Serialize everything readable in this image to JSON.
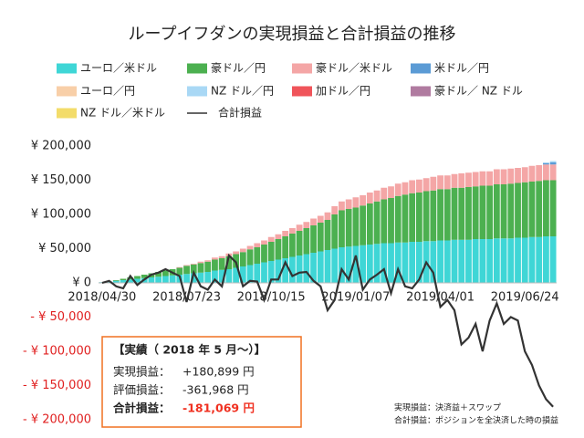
{
  "chart_data": {
    "type": "bar",
    "stacked": true,
    "title": "ループイフダンの実現損益と合計損益の推移",
    "categories": [
      "2018/04/30",
      null,
      null,
      null,
      null,
      null,
      null,
      null,
      null,
      null,
      null,
      null,
      "2018/07/23",
      null,
      null,
      null,
      null,
      null,
      null,
      null,
      null,
      null,
      null,
      null,
      "2018/10/15",
      null,
      null,
      null,
      null,
      null,
      null,
      null,
      null,
      null,
      null,
      null,
      "2019/01/07",
      null,
      null,
      null,
      null,
      null,
      null,
      null,
      null,
      null,
      null,
      null,
      "2019/04/01",
      null,
      null,
      null,
      null,
      null,
      null,
      null,
      null,
      null,
      null,
      null,
      "2019/06/24",
      null,
      null,
      null,
      null
    ],
    "series": [
      {
        "name": "ユーロ／米ドル",
        "color": "#3fd6d6",
        "values": [
          1000,
          2000,
          3000,
          4000,
          5000,
          6000,
          7000,
          8000,
          9000,
          10000,
          11000,
          12000,
          13000,
          14000,
          15000,
          16000,
          18000,
          19000,
          20000,
          22000,
          24000,
          26000,
          28000,
          30000,
          32000,
          34000,
          36000,
          38000,
          40000,
          42000,
          44000,
          46000,
          48000,
          50000,
          52000,
          53000,
          54000,
          55000,
          56000,
          57000,
          58000,
          58000,
          59000,
          59000,
          60000,
          60000,
          61000,
          61000,
          62000,
          62000,
          63000,
          63000,
          63000,
          64000,
          64000,
          64000,
          65000,
          65000,
          65000,
          66000,
          66000,
          67000,
          67000,
          68000,
          68000
        ]
      },
      {
        "name": "豪ドル／円",
        "color": "#4cb050",
        "values": [
          0,
          0,
          1000,
          2000,
          3000,
          4000,
          5000,
          6000,
          7000,
          8000,
          9000,
          10000,
          12000,
          13000,
          14000,
          15000,
          16000,
          17000,
          19000,
          20000,
          21000,
          23000,
          24000,
          26000,
          28000,
          30000,
          32000,
          34000,
          36000,
          38000,
          40000,
          42000,
          44000,
          50000,
          54000,
          55000,
          56000,
          58000,
          60000,
          62000,
          64000,
          66000,
          68000,
          70000,
          71000,
          72000,
          73000,
          74000,
          75000,
          75000,
          76000,
          76000,
          77000,
          77000,
          78000,
          78000,
          79000,
          79000,
          80000,
          80000,
          81000,
          81000,
          82000,
          82000,
          82000
        ]
      },
      {
        "name": "豪ドル／米ドル",
        "color": "#f4a6a6",
        "values": [
          0,
          0,
          0,
          0,
          0,
          0,
          0,
          0,
          0,
          0,
          0,
          1000,
          1000,
          1000,
          2000,
          2000,
          3000,
          3000,
          4000,
          4000,
          5000,
          5000,
          6000,
          6000,
          7000,
          7000,
          8000,
          8000,
          9000,
          9000,
          10000,
          10000,
          11000,
          12000,
          13000,
          14000,
          15000,
          15000,
          16000,
          16000,
          17000,
          17000,
          18000,
          18000,
          19000,
          19000,
          19000,
          20000,
          20000,
          20000,
          20000,
          21000,
          21000,
          21000,
          21000,
          21000,
          22000,
          22000,
          22000,
          22000,
          22000,
          23000,
          23000,
          23000,
          23000
        ]
      },
      {
        "name": "米ドル／円",
        "color": "#5b9bd5",
        "values": [
          0,
          0,
          0,
          0,
          0,
          0,
          0,
          0,
          0,
          0,
          0,
          0,
          0,
          0,
          0,
          0,
          0,
          0,
          0,
          0,
          0,
          0,
          0,
          0,
          0,
          0,
          0,
          0,
          0,
          0,
          0,
          0,
          0,
          0,
          0,
          0,
          0,
          0,
          0,
          0,
          0,
          0,
          0,
          0,
          0,
          0,
          0,
          0,
          0,
          0,
          0,
          0,
          0,
          0,
          0,
          0,
          0,
          0,
          0,
          0,
          0,
          0,
          0,
          2000,
          3000
        ]
      },
      {
        "name": "ユーロ／円",
        "color": "#f8cfa8",
        "values": [
          0,
          0,
          0,
          0,
          0,
          0,
          0,
          0,
          0,
          0,
          0,
          0,
          0,
          0,
          0,
          0,
          0,
          0,
          0,
          0,
          0,
          0,
          0,
          0,
          0,
          0,
          0,
          0,
          0,
          0,
          0,
          0,
          0,
          0,
          0,
          0,
          0,
          0,
          0,
          0,
          0,
          0,
          0,
          0,
          0,
          0,
          0,
          0,
          0,
          0,
          0,
          0,
          0,
          0,
          0,
          0,
          0,
          0,
          0,
          0,
          0,
          0,
          0,
          0,
          0
        ]
      },
      {
        "name": "NZ ドル／円",
        "color": "#a9d8f5",
        "values": [
          0,
          0,
          0,
          0,
          0,
          0,
          0,
          0,
          0,
          0,
          0,
          0,
          0,
          0,
          0,
          0,
          0,
          0,
          0,
          0,
          0,
          0,
          0,
          0,
          0,
          0,
          0,
          0,
          0,
          0,
          0,
          0,
          0,
          0,
          0,
          0,
          0,
          0,
          0,
          0,
          0,
          0,
          0,
          0,
          0,
          0,
          0,
          0,
          0,
          0,
          0,
          0,
          0,
          0,
          0,
          0,
          0,
          0,
          0,
          0,
          0,
          0,
          0,
          1000,
          2000
        ]
      },
      {
        "name": "加ドル／円",
        "color": "#f0545a",
        "values": [
          0,
          0,
          0,
          0,
          0,
          0,
          0,
          0,
          0,
          0,
          0,
          0,
          0,
          0,
          0,
          0,
          0,
          0,
          0,
          0,
          0,
          0,
          0,
          0,
          0,
          0,
          0,
          0,
          0,
          0,
          0,
          0,
          0,
          0,
          0,
          0,
          0,
          0,
          0,
          0,
          0,
          0,
          0,
          0,
          0,
          0,
          0,
          0,
          0,
          0,
          0,
          0,
          0,
          0,
          0,
          0,
          0,
          0,
          0,
          0,
          0,
          0,
          0,
          0,
          0
        ]
      },
      {
        "name": "豪ドル／ NZ ドル",
        "color": "#b07ba0",
        "values": [
          0,
          0,
          0,
          0,
          0,
          0,
          0,
          0,
          0,
          0,
          0,
          0,
          0,
          0,
          0,
          0,
          0,
          0,
          0,
          0,
          0,
          0,
          0,
          0,
          0,
          0,
          0,
          0,
          0,
          0,
          0,
          0,
          0,
          0,
          0,
          0,
          0,
          0,
          0,
          0,
          0,
          0,
          0,
          0,
          0,
          0,
          0,
          0,
          0,
          0,
          0,
          0,
          0,
          0,
          0,
          0,
          0,
          0,
          0,
          0,
          0,
          0,
          0,
          0,
          0
        ]
      },
      {
        "name": "NZ ドル／米ドル",
        "color": "#f3dc6a",
        "values": [
          0,
          0,
          0,
          0,
          0,
          0,
          0,
          0,
          0,
          0,
          0,
          0,
          0,
          0,
          0,
          0,
          0,
          0,
          0,
          0,
          0,
          0,
          0,
          0,
          0,
          0,
          0,
          0,
          0,
          0,
          0,
          0,
          0,
          0,
          0,
          0,
          0,
          0,
          0,
          0,
          0,
          0,
          0,
          0,
          0,
          0,
          0,
          0,
          0,
          0,
          0,
          0,
          0,
          0,
          0,
          0,
          0,
          0,
          0,
          0,
          0,
          0,
          0,
          0,
          0
        ]
      }
    ],
    "line": {
      "name": "合計損益",
      "color": "#333333",
      "values": [
        0,
        3000,
        -5000,
        -8000,
        10000,
        -3000,
        5000,
        12000,
        15000,
        20000,
        15000,
        10000,
        -28000,
        15000,
        -5000,
        -10000,
        5000,
        -5000,
        40000,
        30000,
        -5000,
        3000,
        2000,
        -25000,
        5000,
        5000,
        30000,
        10000,
        15000,
        16000,
        3000,
        -5000,
        -40000,
        -25000,
        20000,
        5000,
        40000,
        -10000,
        5000,
        12000,
        20000,
        -15000,
        20000,
        -5000,
        -8000,
        5000,
        30000,
        15000,
        -35000,
        -25000,
        -40000,
        -90000,
        -80000,
        -60000,
        -100000,
        -55000,
        -30000,
        -60000,
        -50000,
        -55000,
        -100000,
        -120000,
        -150000,
        -170000,
        -181069
      ]
    },
    "ylim": [
      -200000,
      200000
    ],
    "yticks": [
      {
        "value": 200000,
        "label": "¥ 200,000"
      },
      {
        "value": 150000,
        "label": "¥ 150,000"
      },
      {
        "value": 100000,
        "label": "¥ 100,000"
      },
      {
        "value": 50000,
        "label": "¥ 50,000"
      },
      {
        "value": 0,
        "label": "¥ 0"
      },
      {
        "value": -50000,
        "label": "- ¥ 50,000"
      },
      {
        "value": -100000,
        "label": "- ¥ 100,000"
      },
      {
        "value": -150000,
        "label": "- ¥ 150,000"
      },
      {
        "value": -200000,
        "label": "- ¥ 200,000"
      }
    ],
    "negative_tick_color": "#e02020",
    "grid": false,
    "legend": "top",
    "summary": {
      "heading": "【実績（ 2018 年 5 月～）】",
      "rows": [
        [
          "実現損益：",
          "+180,899 円"
        ],
        [
          "評価損益：",
          "-361,968 円"
        ],
        [
          "合計損益：",
          "-181,069 円"
        ]
      ],
      "border_color": "#f07020",
      "highlight_color": "#f03020"
    },
    "notes": [
      "実現損益：決済益＋スワップ",
      "合計損益：ポジションを全決済した時の損益"
    ]
  }
}
